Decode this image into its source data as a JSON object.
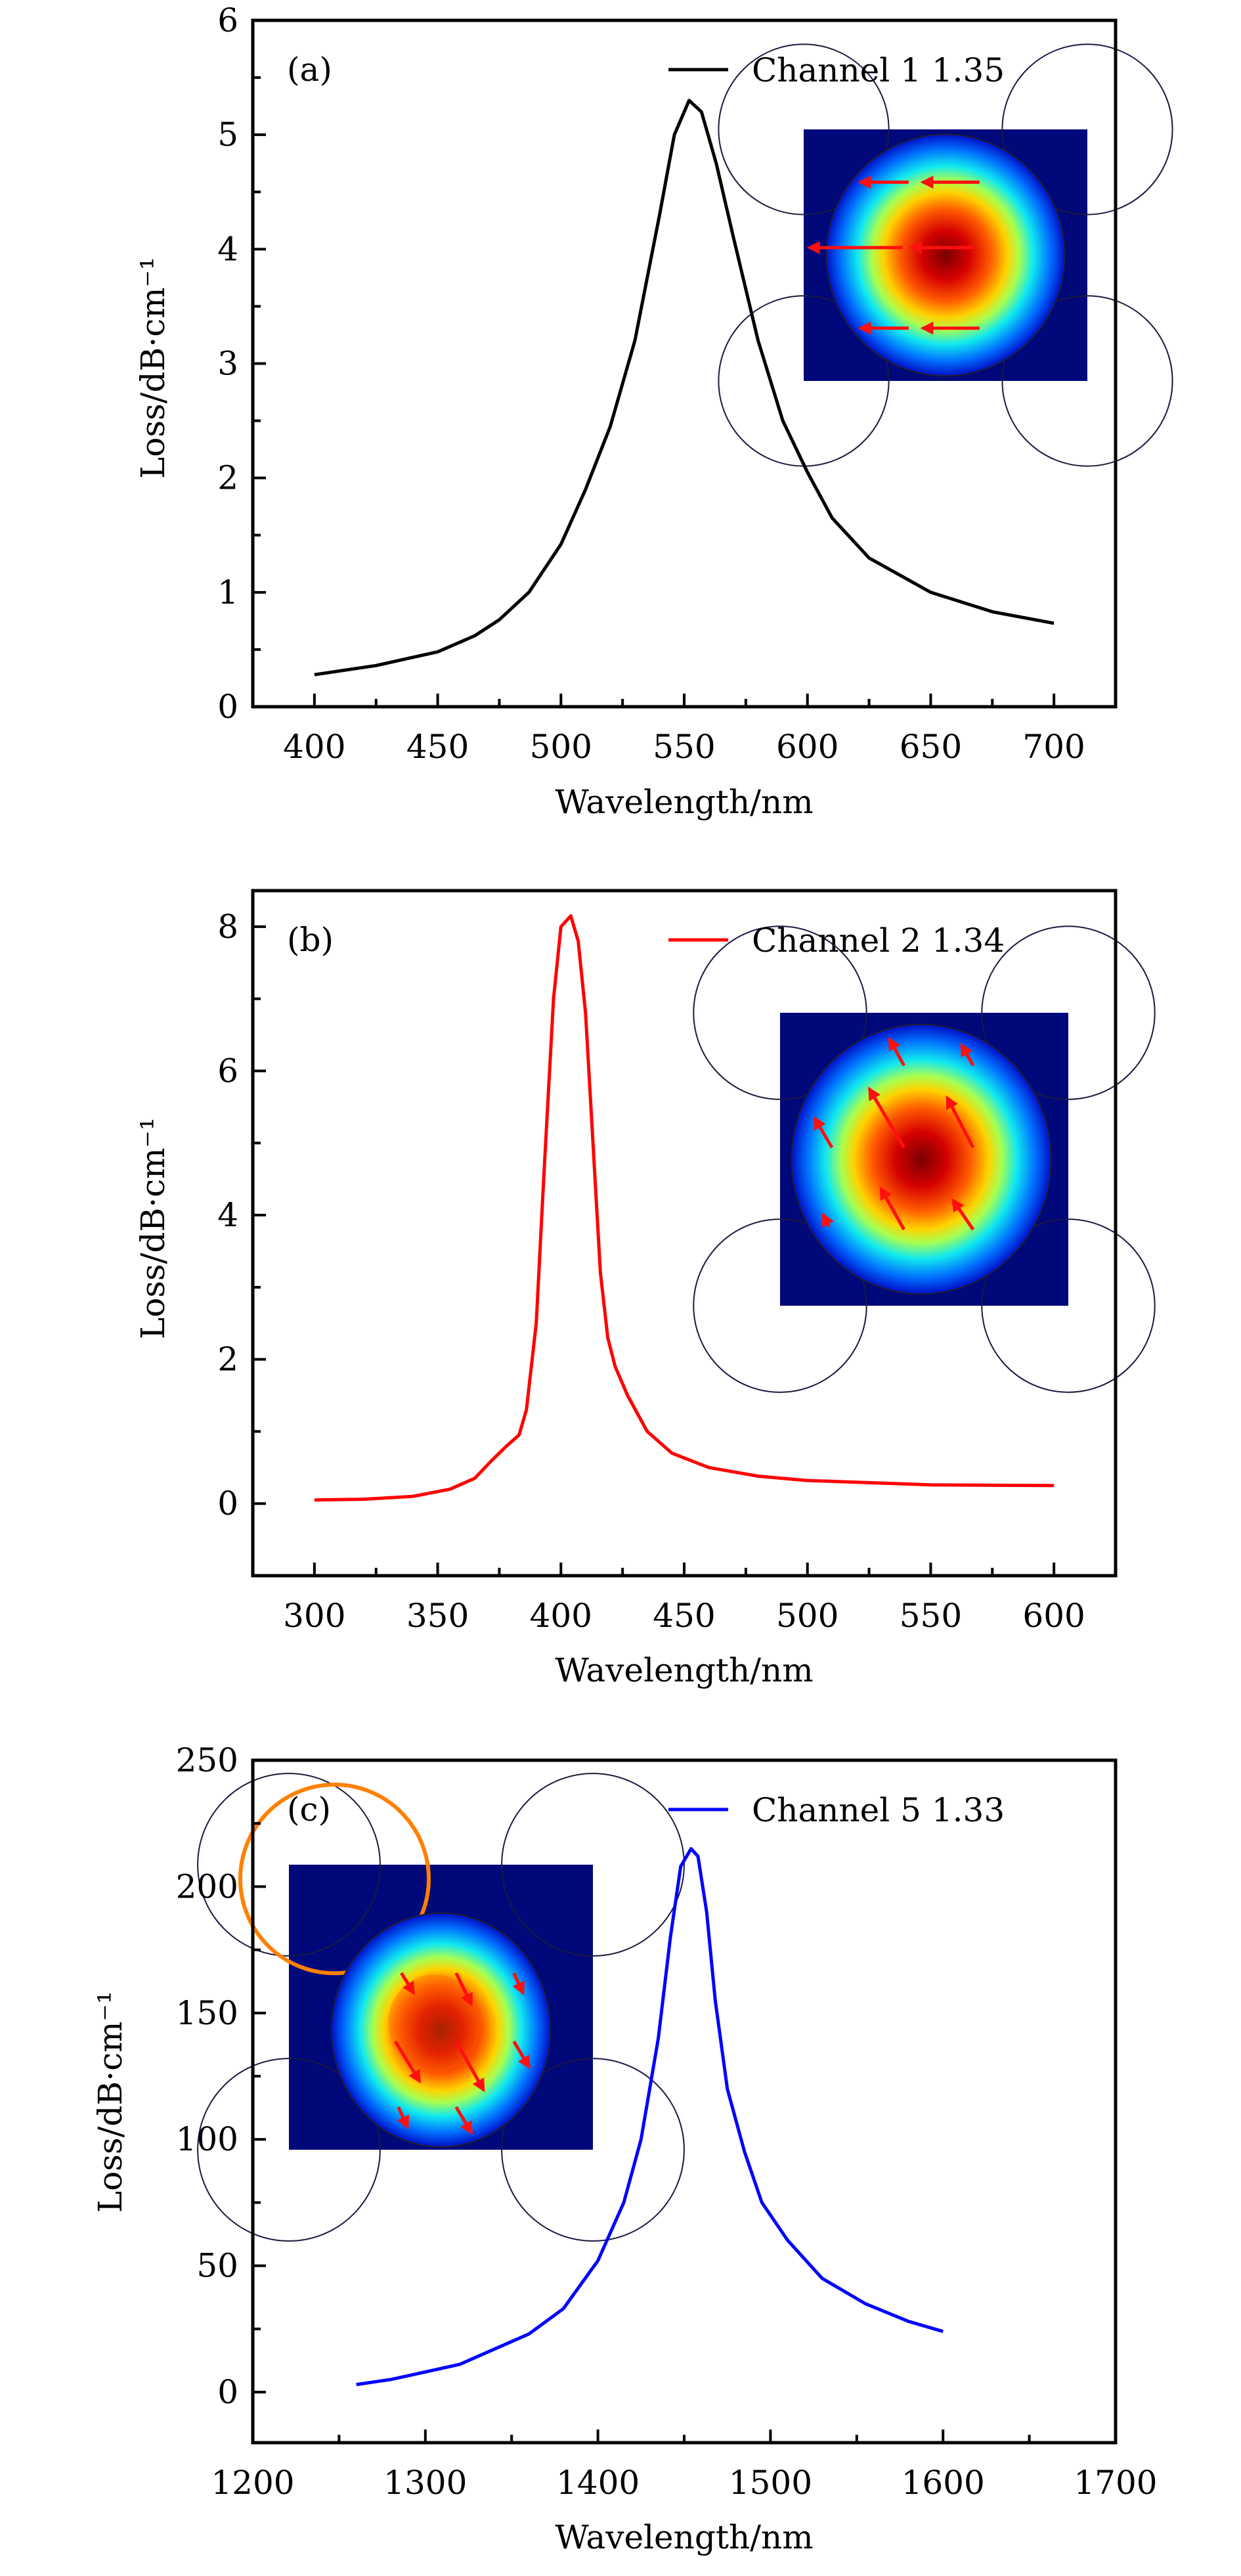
{
  "chart_data": [
    {
      "type": "line",
      "panel_label": "(a)",
      "xlabel": "Wavelength/nm",
      "ylabel": "Loss/dB·cm⁻¹",
      "xlim": [
        375,
        725
      ],
      "ylim": [
        0,
        6
      ],
      "xticks": [
        400,
        450,
        500,
        550,
        600,
        650,
        700
      ],
      "yticks": [
        0,
        1,
        2,
        3,
        4,
        5,
        6
      ],
      "legend_position": "top-right",
      "series": [
        {
          "name": "Channel 1 1.35",
          "color": "#000000",
          "x": [
            400,
            425,
            450,
            465,
            475,
            487,
            500,
            510,
            520,
            530,
            540,
            546,
            552,
            557,
            563,
            570,
            580,
            590,
            600,
            610,
            625,
            650,
            675,
            700
          ],
          "y": [
            0.28,
            0.36,
            0.48,
            0.62,
            0.76,
            1.0,
            1.42,
            1.9,
            2.45,
            3.2,
            4.3,
            5.0,
            5.3,
            5.2,
            4.75,
            4.1,
            3.2,
            2.5,
            2.05,
            1.65,
            1.3,
            1.0,
            0.83,
            0.73
          ]
        }
      ]
    },
    {
      "type": "line",
      "panel_label": "(b)",
      "xlabel": "Wavelength/nm",
      "ylabel": "Loss/dB·cm⁻¹",
      "xlim": [
        275,
        625
      ],
      "ylim": [
        -1,
        8.5
      ],
      "xticks": [
        300,
        350,
        400,
        450,
        500,
        550,
        600
      ],
      "yticks": [
        0,
        2,
        4,
        6,
        8
      ],
      "legend_position": "top-right",
      "series": [
        {
          "name": "Channel 2 1.34",
          "color": "#ff0000",
          "x": [
            300,
            320,
            340,
            355,
            365,
            372,
            378,
            383,
            386,
            390,
            393,
            397,
            400,
            404,
            407,
            410,
            413,
            416,
            419,
            422,
            427,
            435,
            445,
            460,
            480,
            500,
            550,
            600
          ],
          "y": [
            0.05,
            0.06,
            0.1,
            0.2,
            0.35,
            0.6,
            0.8,
            0.95,
            1.3,
            2.5,
            4.5,
            7.0,
            8.0,
            8.15,
            7.8,
            6.8,
            5.0,
            3.2,
            2.3,
            1.9,
            1.5,
            1.0,
            0.7,
            0.5,
            0.38,
            0.32,
            0.26,
            0.25
          ]
        }
      ]
    },
    {
      "type": "line",
      "panel_label": "(c)",
      "xlabel": "Wavelength/nm",
      "ylabel": "Loss/dB·cm⁻¹",
      "xlim": [
        1200,
        1700
      ],
      "ylim": [
        -20,
        250
      ],
      "xticks": [
        1200,
        1300,
        1400,
        1500,
        1600,
        1700
      ],
      "yticks": [
        0,
        50,
        100,
        150,
        200,
        250
      ],
      "legend_position": "top-right",
      "series": [
        {
          "name": "Channel 5 1.33",
          "color": "#0000ff",
          "x": [
            1260,
            1280,
            1300,
            1320,
            1340,
            1360,
            1380,
            1400,
            1415,
            1425,
            1435,
            1442,
            1448,
            1454,
            1458,
            1463,
            1468,
            1475,
            1485,
            1495,
            1510,
            1530,
            1555,
            1580,
            1600
          ],
          "y": [
            3,
            5,
            8,
            11,
            17,
            23,
            33,
            52,
            75,
            100,
            140,
            180,
            208,
            215,
            212,
            190,
            155,
            120,
            95,
            75,
            60,
            45,
            35,
            28,
            24
          ]
        }
      ]
    }
  ]
}
